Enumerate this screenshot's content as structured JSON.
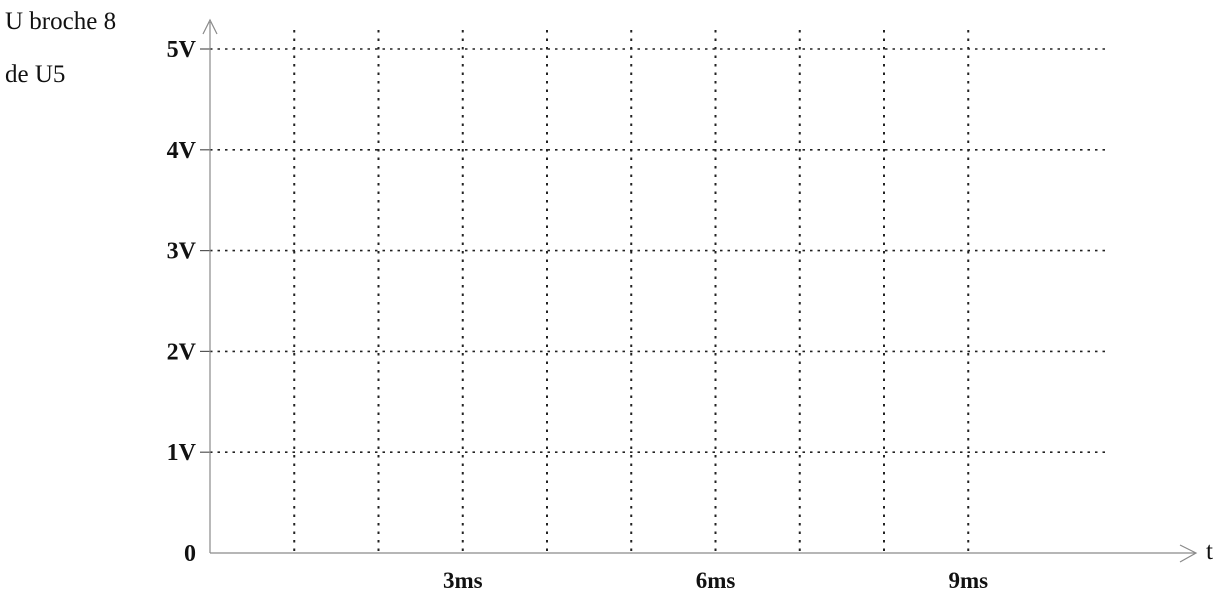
{
  "chart_data": {
    "type": "line",
    "title": "",
    "ylabel_lines": [
      "U broche 8",
      "de U5"
    ],
    "xlabel": "t",
    "y_ticks": [
      {
        "value": 0,
        "label": "0"
      },
      {
        "value": 1,
        "label": "1V"
      },
      {
        "value": 2,
        "label": "2V"
      },
      {
        "value": 3,
        "label": "3V"
      },
      {
        "value": 4,
        "label": "4V"
      },
      {
        "value": 5,
        "label": "5V"
      }
    ],
    "x_ticks": [
      {
        "value": 3,
        "label": "3ms"
      },
      {
        "value": 6,
        "label": "6ms"
      },
      {
        "value": 9,
        "label": "9ms"
      }
    ],
    "x_gridlines": [
      1,
      2,
      3,
      4,
      5,
      6,
      7,
      8,
      9
    ],
    "x_unit": "ms",
    "y_unit": "V",
    "xlim": [
      0,
      10.5
    ],
    "ylim": [
      0,
      5
    ],
    "grid": "dotted",
    "series": []
  }
}
